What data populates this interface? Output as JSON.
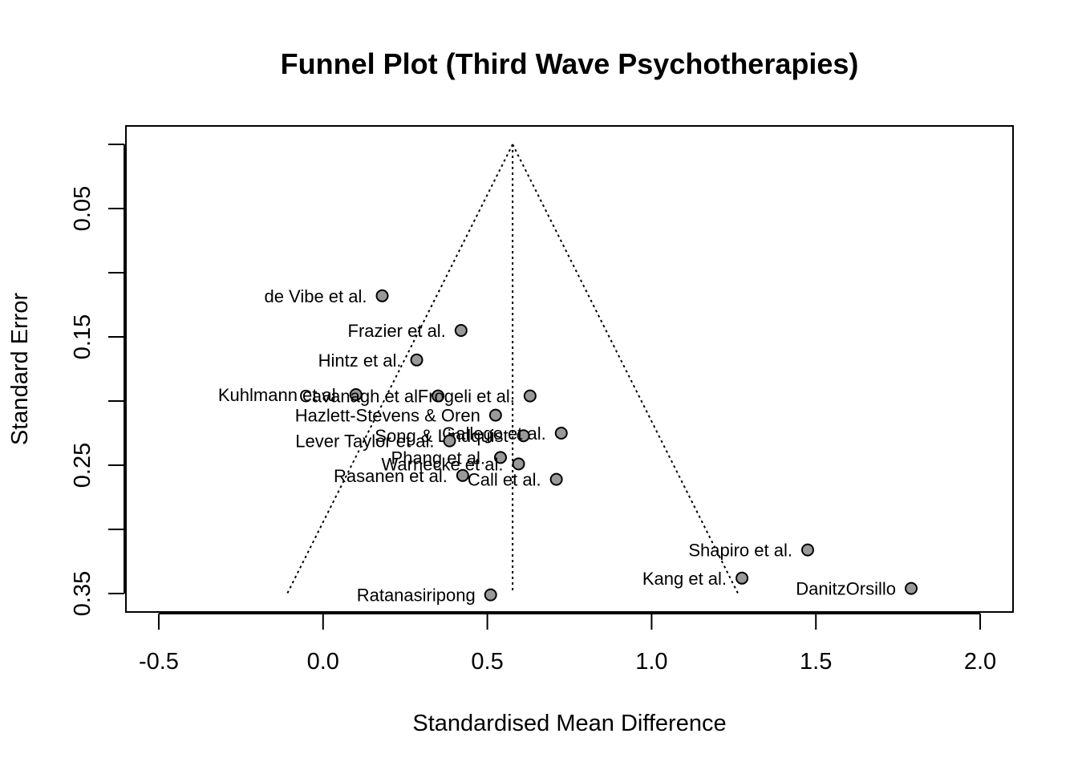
{
  "chart_data": {
    "type": "scatter",
    "title": "Funnel Plot (Third Wave Psychotherapies)",
    "xlabel": "Standardised Mean Difference",
    "ylabel": "Standard Error",
    "xlim": [
      -0.6,
      2.1
    ],
    "ylim": [
      0.0,
      0.365
    ],
    "y_reversed": true,
    "x_ticks": [
      -0.5,
      0.0,
      0.5,
      1.0,
      1.5,
      2.0
    ],
    "x_tick_labels": [
      "-0.5",
      "0.0",
      "0.5",
      "1.0",
      "1.5",
      "2.0"
    ],
    "y_ticks": [
      0.0,
      0.05,
      0.1,
      0.15,
      0.2,
      0.25,
      0.3,
      0.35
    ],
    "y_tick_labels": [
      "",
      "0.05",
      "",
      "0.15",
      "",
      "0.25",
      "",
      "0.35"
    ],
    "grid": false,
    "legend": "none",
    "pooled_estimate": 0.577,
    "funnel_se_max": 0.35,
    "colors": {
      "point_fill": "#999999",
      "point_stroke": "#000000",
      "line": "#000000"
    },
    "points": [
      {
        "label": "de Vibe et al.",
        "x": 0.18,
        "y": 0.118
      },
      {
        "label": "Frazier et al.",
        "x": 0.42,
        "y": 0.145
      },
      {
        "label": "Hintz et al.",
        "x": 0.285,
        "y": 0.168
      },
      {
        "label": "Kuhlmann et al.",
        "x": 0.1,
        "y": 0.195
      },
      {
        "label": "Cavanagh et al.",
        "x": 0.35,
        "y": 0.196
      },
      {
        "label": "Frogeli et al.",
        "x": 0.63,
        "y": 0.196
      },
      {
        "label": "Hazlett-Stevens & Oren",
        "x": 0.525,
        "y": 0.211
      },
      {
        "label": "Song & Lindquist",
        "x": 0.61,
        "y": 0.227
      },
      {
        "label": "Gallego et al.",
        "x": 0.725,
        "y": 0.225
      },
      {
        "label": "Lever Taylor et al.",
        "x": 0.385,
        "y": 0.231
      },
      {
        "label": "Phang et al.",
        "x": 0.54,
        "y": 0.244
      },
      {
        "label": "Warnecke et al.",
        "x": 0.595,
        "y": 0.249
      },
      {
        "label": "Rasanen et al.",
        "x": 0.425,
        "y": 0.258
      },
      {
        "label": "Call et al.",
        "x": 0.71,
        "y": 0.261
      },
      {
        "label": "Shapiro et al.",
        "x": 1.475,
        "y": 0.316
      },
      {
        "label": "Kang et al.",
        "x": 1.275,
        "y": 0.338
      },
      {
        "label": "DanitzOrsillo",
        "x": 1.79,
        "y": 0.346
      },
      {
        "label": "Ratanasiripong",
        "x": 0.51,
        "y": 0.351
      }
    ]
  }
}
